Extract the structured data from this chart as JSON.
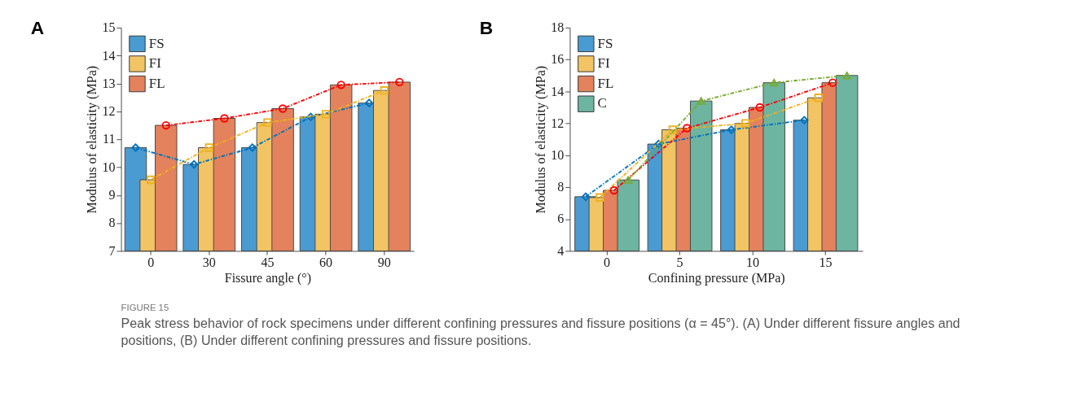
{
  "chart_data": [
    {
      "type": "bar",
      "title": "A",
      "xlabel": "Fissure angle (°)",
      "ylabel": "Modulus of elasticity (MPa)",
      "categories": [
        "0",
        "30",
        "45",
        "60",
        "90"
      ],
      "series": [
        {
          "name": "FS",
          "color": "#4a9bd1",
          "values": [
            10.7,
            10.1,
            10.7,
            11.8,
            12.3
          ]
        },
        {
          "name": "FI",
          "color": "#f2c464",
          "values": [
            9.55,
            10.7,
            11.6,
            11.9,
            12.75
          ]
        },
        {
          "name": "FL",
          "color": "#e3825c",
          "values": [
            11.5,
            11.75,
            12.1,
            12.95,
            13.05
          ]
        },
        {
          "type": "line",
          "color": "#0072bd",
          "marker": "diamond",
          "line_style": "dashed",
          "values": [
            10.7,
            10.1,
            10.7,
            11.8,
            12.3
          ]
        },
        {
          "type": "line",
          "color": "#edb120",
          "marker": "square",
          "line_style": "dashed",
          "values": [
            9.55,
            10.7,
            11.6,
            11.9,
            12.75
          ]
        },
        {
          "type": "line",
          "color": "#ff0000",
          "marker": "circle",
          "line_style": "dashed",
          "values": [
            11.5,
            11.75,
            12.1,
            12.95,
            13.05
          ]
        }
      ],
      "ylim": [
        7,
        15
      ],
      "yticks": [
        7,
        8,
        9,
        10,
        11,
        12,
        13,
        14,
        15
      ],
      "grid": false,
      "legend": "top left",
      "annotations": [
        "FIGURE 15",
        "Peak stress behavior of rock specimens under different confining pressures and fissure positions (α = 45°). (A) Under different fissure angles and positions, (B) Under different confining pressures and fissure positions."
      ]
    },
    {
      "type": "bar",
      "title": "B",
      "xlabel": "Confining pressure (MPa)",
      "ylabel": "Modulus of elasticity (MPa)",
      "categories": [
        "0",
        "5",
        "10",
        "15"
      ],
      "series": [
        {
          "name": "FS",
          "color": "#4a9bd1",
          "values": [
            7.4,
            10.7,
            11.6,
            12.2
          ]
        },
        {
          "name": "FI",
          "color": "#f2c464",
          "values": [
            7.35,
            11.6,
            12.0,
            13.6
          ]
        },
        {
          "name": "FL",
          "color": "#e3825c",
          "values": [
            7.8,
            11.7,
            13.0,
            14.55
          ]
        },
        {
          "name": "C",
          "color": "#6db5a0",
          "values": [
            8.45,
            13.4,
            14.55,
            15.0
          ]
        },
        {
          "type": "line",
          "color": "#0072bd",
          "marker": "diamond",
          "line_style": "dashed",
          "values": [
            7.4,
            10.7,
            11.6,
            12.2
          ]
        },
        {
          "type": "line",
          "color": "#edb120",
          "marker": "square",
          "line_style": "dashed",
          "values": [
            7.35,
            11.6,
            12.0,
            13.6
          ]
        },
        {
          "type": "line",
          "color": "#ff0000",
          "marker": "circle",
          "line_style": "dashed",
          "values": [
            7.8,
            11.7,
            13.0,
            14.55
          ]
        },
        {
          "type": "line",
          "color": "#77ac30",
          "marker": "triangle",
          "line_style": "dashed",
          "values": [
            8.45,
            13.4,
            14.55,
            15.0
          ]
        }
      ],
      "ylim": [
        4,
        18
      ],
      "yticks": [
        4,
        6,
        8,
        10,
        12,
        14,
        16,
        18
      ],
      "grid": false,
      "legend": "top left"
    }
  ]
}
